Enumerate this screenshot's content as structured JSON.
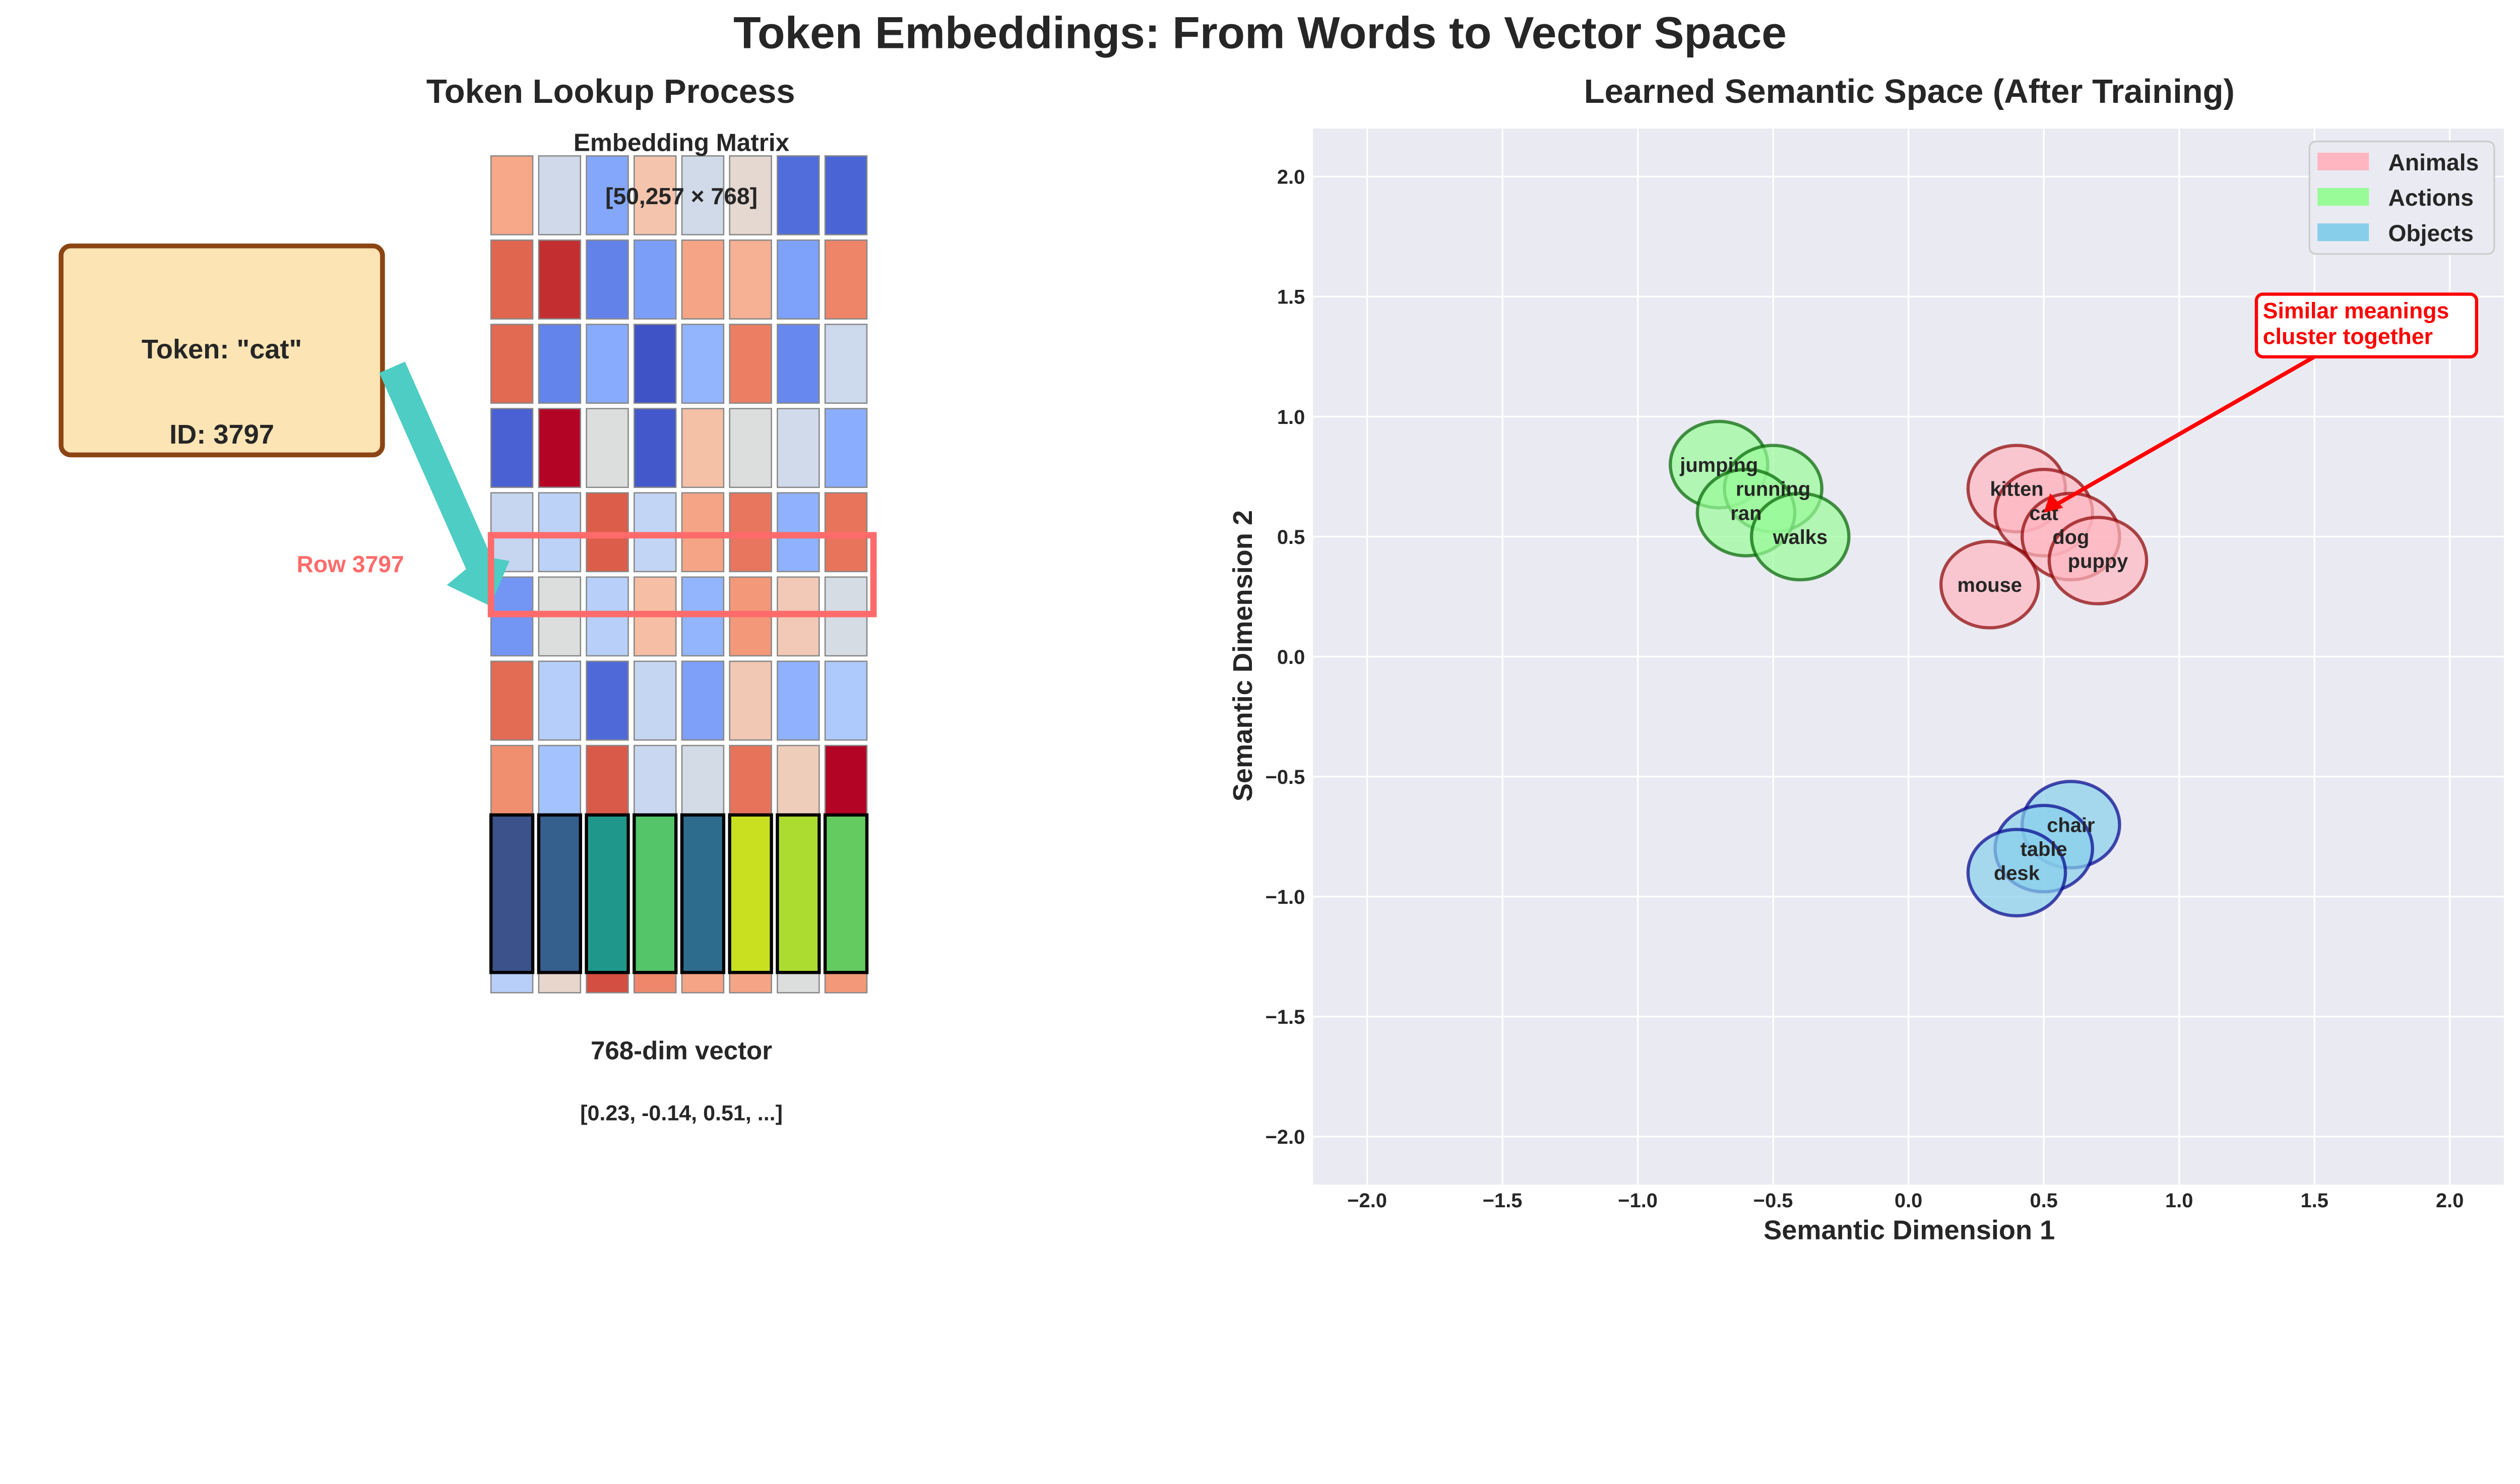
{
  "figure_title": "Token Embeddings: From Words to Vector Space",
  "left_panel": {
    "title": "Token Lookup Process",
    "token_box": {
      "token_label": "Token: \"cat\"",
      "id_label": "ID: 3797",
      "fill": "#fde4b4",
      "border": "#8b4513"
    },
    "row_label": "Row 3797",
    "matrix_title": "Embedding Matrix",
    "matrix_shape": "[50,257 × 768]",
    "vector_label": "768-dim vector",
    "vector_values": "[0.23, -0.14, 0.51, ...]",
    "arrow_color": "#4ecdc4",
    "highlight_color": "#ff6b6b",
    "matrix_colors": [
      [
        "#f6a889",
        "#cfd9ea",
        "#84a7fb",
        "#f4c4ad",
        "#d0dae9",
        "#e5d8d1",
        "#516ddb",
        "#4b64d5"
      ],
      [
        "#e06650",
        "#c32e31",
        "#6282ea",
        "#7b9ff9",
        "#f5a586",
        "#f6b093",
        "#7ea1fa",
        "#ee8468"
      ],
      [
        "#e26952",
        "#6384eb",
        "#88abfd",
        "#3f53c6",
        "#93b5fe",
        "#ec7f63",
        "#6788ee",
        "#cdd9ec"
      ],
      [
        "#4961d2",
        "#b40426",
        "#dcdddd",
        "#4358cb",
        "#f4c0a6",
        "#dcdddd",
        "#d0daea",
        "#8badfd"
      ],
      [
        "#c6d6f1",
        "#bcd2f7",
        "#dc5d4a",
        "#c3d5f4",
        "#f5a586",
        "#e8765e",
        "#8fb1fe",
        "#e7745b"
      ],
      [
        "#7396f5",
        "#dcdddd",
        "#b7cff9",
        "#f6bea4",
        "#93b5fe",
        "#f39979",
        "#f1c9b6",
        "#d6dce4"
      ],
      [
        "#e36c55",
        "#b6cefa",
        "#4f69d9",
        "#c5d6f2",
        "#7fa0f9",
        "#f1c8b4",
        "#8fb1fe",
        "#aec9fc"
      ],
      [
        "#f08f70",
        "#a3c2fe",
        "#da5a49",
        "#c9d7f0",
        "#d3dbe7",
        "#e7735b",
        "#efcdbb",
        "#b40426"
      ],
      [
        "#dcdddd",
        "#dcdddd",
        "#dcdddd",
        "#dcdddd",
        "#dcdddd",
        "#dcdddd",
        "#dcdddd",
        "#dcdddd"
      ],
      [
        "#b7cff9",
        "#e8d6cc",
        "#d44e41",
        "#ef886b",
        "#f5a486",
        "#f5a486",
        "#dcdddd",
        "#f39979"
      ]
    ],
    "vector_colors": [
      "#3b528b",
      "#355f8d",
      "#1f988b",
      "#54c568",
      "#2e6c8e",
      "#c8e020",
      "#addc30",
      "#63cb5f"
    ]
  },
  "chart_data": {
    "type": "scatter",
    "title": "Learned Semantic Space (After Training)",
    "xlabel": "Semantic Dimension 1",
    "ylabel": "Semantic Dimension 2",
    "xlim": [
      -2.2,
      2.2
    ],
    "ylim": [
      -2.2,
      2.2
    ],
    "xticks": [
      -2.0,
      -1.5,
      -1.0,
      -0.5,
      0.0,
      0.5,
      1.0,
      1.5,
      2.0
    ],
    "yticks": [
      -2.0,
      -1.5,
      -1.0,
      -0.5,
      0.0,
      0.5,
      1.0,
      1.5,
      2.0
    ],
    "xtick_labels": [
      "−2.0",
      "−1.5",
      "−1.0",
      "−0.5",
      "0.0",
      "0.5",
      "1.0",
      "1.5",
      "2.0"
    ],
    "ytick_labels": [
      "−2.0",
      "−1.5",
      "−1.0",
      "−0.5",
      "0.0",
      "0.5",
      "1.0",
      "1.5",
      "2.0"
    ],
    "grid": true,
    "marker_radius": 0.18,
    "legend_position": "top-right",
    "series": [
      {
        "name": "Animals",
        "fill": "#ffb6c1",
        "edge": "#8b0000",
        "points": [
          {
            "label": "kitten",
            "x": 0.4,
            "y": 0.7
          },
          {
            "label": "cat",
            "x": 0.5,
            "y": 0.6
          },
          {
            "label": "dog",
            "x": 0.6,
            "y": 0.5
          },
          {
            "label": "puppy",
            "x": 0.7,
            "y": 0.4
          },
          {
            "label": "mouse",
            "x": 0.3,
            "y": 0.3
          }
        ]
      },
      {
        "name": "Actions",
        "fill": "#98fb98",
        "edge": "#006400",
        "points": [
          {
            "label": "jumping",
            "x": -0.7,
            "y": 0.8
          },
          {
            "label": "running",
            "x": -0.5,
            "y": 0.7
          },
          {
            "label": "ran",
            "x": -0.6,
            "y": 0.6
          },
          {
            "label": "walks",
            "x": -0.4,
            "y": 0.5
          }
        ]
      },
      {
        "name": "Objects",
        "fill": "#87ceeb",
        "edge": "#00008b",
        "points": [
          {
            "label": "chair",
            "x": 0.6,
            "y": -0.7
          },
          {
            "label": "table",
            "x": 0.5,
            "y": -0.8
          },
          {
            "label": "desk",
            "x": 0.4,
            "y": -0.9
          }
        ]
      }
    ],
    "annotation": {
      "lines": [
        "Similar meanings",
        "cluster together"
      ],
      "target": {
        "x": 0.5,
        "y": 0.6
      },
      "color": "#ff0000"
    }
  }
}
